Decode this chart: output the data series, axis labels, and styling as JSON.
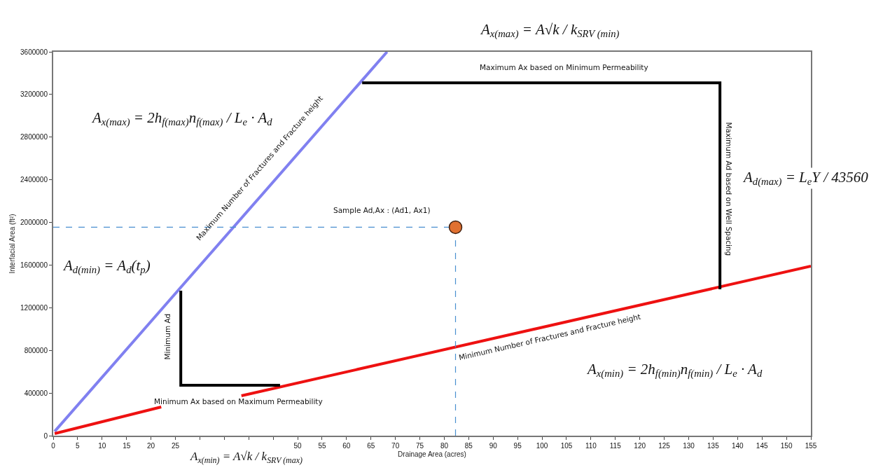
{
  "chart_data": {
    "type": "line",
    "xlabel": "Drainage Area (acres)",
    "ylabel": "Interfacial Area (ft²)",
    "xlim": [
      0,
      155
    ],
    "ylim": [
      0,
      3600000
    ],
    "xticks": [
      0,
      5,
      10,
      15,
      20,
      25,
      {
        "value": 30,
        "label": null
      },
      {
        "value": 35,
        "label": null
      },
      {
        "value": 40,
        "label": null
      },
      {
        "value": 45,
        "label": null
      },
      50,
      55,
      60,
      65,
      70,
      75,
      80,
      85,
      90,
      95,
      100,
      105,
      110,
      115,
      120,
      125,
      130,
      135,
      140,
      145,
      150,
      155
    ],
    "yticks": [
      0,
      400000,
      800000,
      1200000,
      1600000,
      2000000,
      2400000,
      2800000,
      3200000,
      3600000
    ],
    "grid": false,
    "series": [
      {
        "color": "#8080f0",
        "x": [
          0.3,
          68.3
        ],
        "values": [
          40000,
          3600000
        ],
        "line_style": "solid",
        "marker": "none"
      },
      {
        "color": "#ee1111",
        "x": [
          0.3,
          22.1,
          30,
          38.5,
          155
        ],
        "values": [
          20000,
          269000,
          null,
          374000,
          1590000
        ],
        "line_style": "solid",
        "marker": "none"
      },
      {
        "type": "line",
        "color": "#000000",
        "x": [
          26.1,
          26.1,
          46.4
        ],
        "values": [
          1360000,
          473000,
          473000
        ],
        "line_style": "solid",
        "marker": "none"
      },
      {
        "type": "line",
        "color": "#000000",
        "x": [
          63.2,
          136.4,
          136.4
        ],
        "values": [
          3310000,
          3310000,
          1373000
        ],
        "line_style": "solid",
        "marker": "none"
      },
      {
        "type": "line",
        "color": "#4a90d0",
        "x": [
          0,
          82.3
        ],
        "values": [
          1955000,
          1955000
        ],
        "line_style": "dashed",
        "marker": "none"
      },
      {
        "type": "line",
        "color": "#4a90d0",
        "x": [
          82.3,
          82.3
        ],
        "values": [
          0,
          1955000
        ],
        "line_style": "dashed",
        "marker": "none"
      },
      {
        "type": "scatter",
        "color": "#e07030",
        "x": [
          82.3
        ],
        "values": [
          1955000
        ],
        "marker": "circle"
      }
    ],
    "annotations": [
      "A$_{x(max)}$ = A√k / k$_{SRV (min)}$",
      "Maximum Ax based on Minimum Permeability",
      "A$_{x(max)}$ = 2h$_{f(max)}$n$_{f(max)}$ / L$_{e}$ · A$_{d}$",
      "Maximum Number of Fractures and Fracture height",
      "Maximum Ad based on Well Spacing",
      "A$_{d(max)}$ = L$_{e}$Y / 43560",
      "Sample Ad,Ax : (Ad1, Ax1)",
      "A$_{d(min)}$ = A$_{d}$(t$_{p}$)",
      "Minimum Ad",
      "Minimum Ax based on Maximum Permeability",
      "Minimum Number of Fractures and Fracture height",
      "A$_{x(min)}$ = 2h$_{f(min)}$n$_{f(min)}$ / L$_{e}$ · A$_{d}$",
      "A$_{x(min)}$ = A√k / k$_{SRV (max)}$"
    ]
  }
}
